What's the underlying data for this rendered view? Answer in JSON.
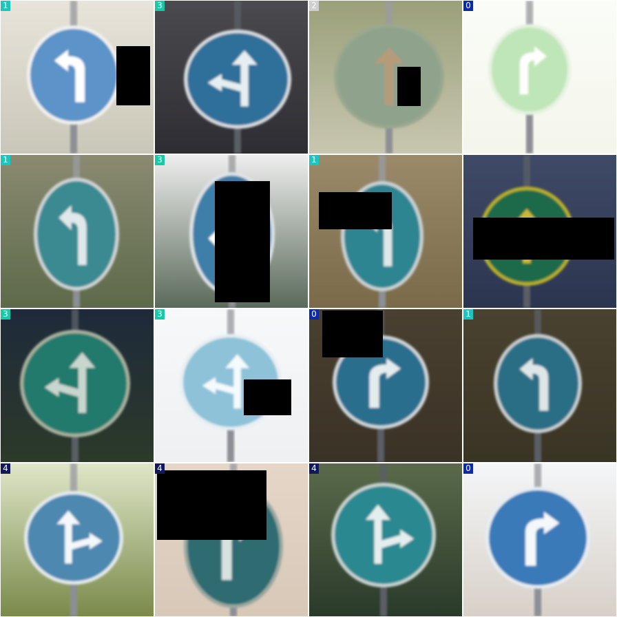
{
  "grid": {
    "columns": 4,
    "rows": 4
  },
  "badge_colors": {
    "0": "#0a2aa8",
    "1": "#18c8c0",
    "2": "#cfcfcf",
    "3": "#18c8a8",
    "4": "#101a5a"
  },
  "tiles": [
    {
      "label": "1",
      "sign": "turn-left-ahead",
      "bg": "#e8e4da",
      "bg2": "#c9c7b8",
      "face": "#5c93c8",
      "arrow": "#ffffff",
      "ring": "#f2f2f2",
      "dark": false
    },
    {
      "label": "3",
      "sign": "straight-or-left",
      "bg": "#4b4a4e",
      "bg2": "#2e2d33",
      "face": "#2f6f9a",
      "arrow": "#e6eef2",
      "ring": "#d9dde0",
      "dark": true
    },
    {
      "label": "2",
      "sign": "ahead-only",
      "bg": "#9aa07a",
      "bg2": "#c8c6b0",
      "face": "#8fa28c",
      "arrow": "#b49c7a",
      "ring": "#9aa88e",
      "dark": false
    },
    {
      "label": "0",
      "sign": "turn-right-ahead",
      "bg": "#fafcf7",
      "bg2": "#f4f6ec",
      "face": "#bfe6b8",
      "arrow": "#ffffff",
      "ring": "#e6f2e0",
      "dark": false
    },
    {
      "label": "1",
      "sign": "turn-left-ahead",
      "bg": "#8a8a70",
      "bg2": "#5d6a4a",
      "face": "#3b8a92",
      "arrow": "#dfe8ea",
      "ring": "#cfd6d8",
      "dark": false
    },
    {
      "label": "3",
      "sign": "straight-or-left",
      "bg": "#eeeeee",
      "bg2": "#5a6a5a",
      "face": "#3c7fa8",
      "arrow": "#ffffff",
      "ring": "#e0e4e8",
      "dark": false
    },
    {
      "label": "1",
      "sign": "turn-left-ahead",
      "bg": "#9a8a6a",
      "bg2": "#7a6a4a",
      "face": "#2f8592",
      "arrow": "#dfe8ea",
      "ring": "#c9d4d6",
      "dark": false
    },
    {
      "label": "",
      "sign": "ahead-only",
      "bg": "#3f4a66",
      "bg2": "#2c3550",
      "face": "#1f6a4a",
      "arrow": "#c8b83a",
      "ring": "#b8b02a",
      "dark": true
    },
    {
      "label": "3",
      "sign": "straight-or-left",
      "bg": "#1e2a3a",
      "bg2": "#2c3a2a",
      "face": "#237a6c",
      "arrow": "#c8d6cf",
      "ring": "#a8b2a0",
      "dark": true
    },
    {
      "label": "3",
      "sign": "straight-or-left",
      "bg": "#f7f8f9",
      "bg2": "#eef0f2",
      "face": "#8ec2d8",
      "arrow": "#f5fafc",
      "ring": "#e6eff4",
      "dark": false
    },
    {
      "label": "0",
      "sign": "turn-right-ahead",
      "bg": "#4a4030",
      "bg2": "#3a3226",
      "face": "#2a6e8e",
      "arrow": "#e4ecef",
      "ring": "#cfd8dc",
      "dark": true
    },
    {
      "label": "1",
      "sign": "turn-left-ahead",
      "bg": "#4a4230",
      "bg2": "#3a3424",
      "face": "#2a6e86",
      "arrow": "#dfe6e8",
      "ring": "#c8d0d2",
      "dark": true
    },
    {
      "label": "4",
      "sign": "straight-or-right",
      "bg": "#dfe6c8",
      "bg2": "#7a8a4a",
      "face": "#4e88b0",
      "arrow": "#f4f8fb",
      "ring": "#e4ecf0",
      "dark": false
    },
    {
      "label": "4",
      "sign": "turn-right-ahead",
      "bg": "#e6d6c8",
      "bg2": "#d8c8b8",
      "face": "#2e6c72",
      "arrow": "#d8e2e0",
      "ring": "#9aa8a0",
      "dark": false
    },
    {
      "label": "4",
      "sign": "straight-or-right",
      "bg": "#5a6a4a",
      "bg2": "#2a3a2a",
      "face": "#2a8890",
      "arrow": "#e4eeee",
      "ring": "#c8d4d2",
      "dark": true
    },
    {
      "label": "0",
      "sign": "turn-right-ahead",
      "bg": "#f4f6f8",
      "bg2": "#d8d0c8",
      "face": "#3a7ab8",
      "arrow": "#f4f8fb",
      "ring": "#e6eef4",
      "dark": false
    }
  ]
}
